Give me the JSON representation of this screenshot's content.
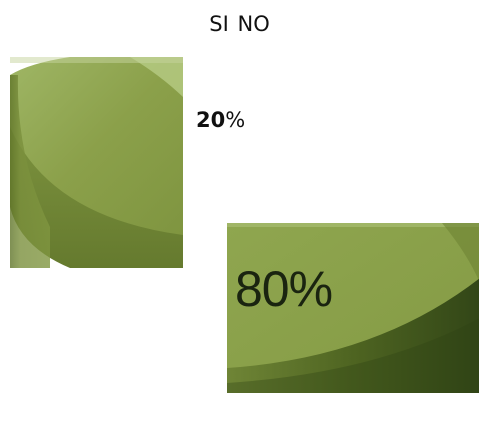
{
  "chart_data": {
    "type": "pie",
    "legend": [
      "SI",
      "NO"
    ],
    "slices": [
      {
        "name": "SI",
        "value": 20,
        "label_number": "20",
        "label_unit": "%",
        "color": "#8ba04a"
      },
      {
        "name": "NO",
        "value": 80,
        "label": "80%",
        "color": "#8ca24c"
      }
    ],
    "legend_placement": "top-center"
  }
}
